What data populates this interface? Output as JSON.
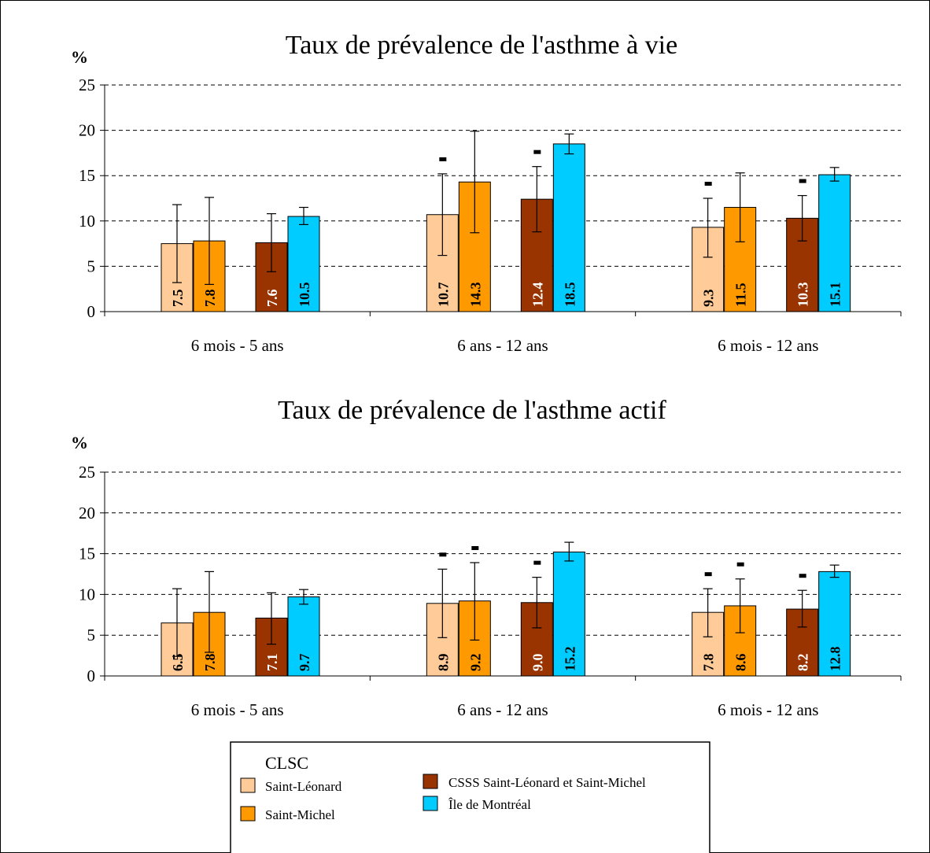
{
  "colors": {
    "saint_leonard": "#FFCC99",
    "saint_michel": "#FF9900",
    "csss": "#993300",
    "montreal": "#00CCFF",
    "grid": "#000000",
    "background": "#FFFFFF"
  },
  "legend": {
    "title": "CLSC",
    "items": [
      {
        "key": "saint_leonard",
        "label": "Saint-Léonard"
      },
      {
        "key": "saint_michel",
        "label": "Saint-Michel"
      },
      {
        "key": "csss",
        "label": "CSSS Saint-Léonard et Saint-Michel"
      },
      {
        "key": "montreal",
        "label": "Île de Montréal"
      }
    ]
  },
  "chart_data": [
    {
      "type": "bar",
      "title": "Taux de prévalence de l'asthme à vie",
      "ylabel": "%",
      "xlabel": "",
      "ylim": [
        0,
        25
      ],
      "yticks": [
        0,
        5,
        10,
        15,
        20,
        25
      ],
      "grid": true,
      "categories": [
        "6 mois - 5 ans",
        "6 ans - 12 ans",
        "6 mois - 12 ans"
      ],
      "series": [
        {
          "key": "saint_leonard",
          "name": "Saint-Léonard",
          "values": [
            7.5,
            10.7,
            9.3
          ],
          "value_labels": [
            "7.5",
            "10.7",
            "9.3"
          ],
          "error_low": [
            3.2,
            6.2,
            6.0
          ],
          "error_high": [
            11.8,
            15.2,
            12.5
          ],
          "marked": [
            false,
            true,
            true
          ]
        },
        {
          "key": "saint_michel",
          "name": "Saint-Michel",
          "values": [
            7.8,
            14.3,
            11.5
          ],
          "value_labels": [
            "7.8",
            "14.3",
            "11.5"
          ],
          "error_low": [
            3.0,
            8.7,
            7.7
          ],
          "error_high": [
            12.6,
            19.9,
            15.3
          ],
          "marked": [
            false,
            false,
            false
          ]
        },
        {
          "key": "csss",
          "name": "CSSS Saint-Léonard et Saint-Michel",
          "values": [
            7.6,
            12.4,
            10.3
          ],
          "value_labels": [
            "7.6",
            "12.4",
            "10.3"
          ],
          "error_low": [
            4.4,
            8.8,
            7.8
          ],
          "error_high": [
            10.8,
            16.0,
            12.8
          ],
          "marked": [
            false,
            true,
            true
          ]
        },
        {
          "key": "montreal",
          "name": "Île de Montréal",
          "values": [
            10.5,
            18.5,
            15.1
          ],
          "value_labels": [
            "10.5",
            "18.5",
            "15.1"
          ],
          "error_low": [
            9.6,
            17.4,
            14.4
          ],
          "error_high": [
            11.5,
            19.6,
            15.9
          ],
          "marked": [
            false,
            false,
            false
          ]
        }
      ]
    },
    {
      "type": "bar",
      "title": "Taux de prévalence de l'asthme actif",
      "ylabel": "%",
      "xlabel": "",
      "ylim": [
        0,
        25
      ],
      "yticks": [
        0,
        5,
        10,
        15,
        20,
        25
      ],
      "grid": true,
      "categories": [
        "6 mois - 5 ans",
        "6 ans - 12 ans",
        "6 mois - 12 ans"
      ],
      "series": [
        {
          "key": "saint_leonard",
          "name": "Saint-Léonard",
          "values": [
            6.5,
            8.9,
            7.8
          ],
          "value_labels": [
            "6.5",
            "8.9",
            "7.8"
          ],
          "error_low": [
            2.4,
            4.7,
            4.8
          ],
          "error_high": [
            10.7,
            13.1,
            10.7
          ],
          "marked": [
            false,
            true,
            true
          ]
        },
        {
          "key": "saint_michel",
          "name": "Saint-Michel",
          "values": [
            7.8,
            9.2,
            8.6
          ],
          "value_labels": [
            "7.8",
            "9.2",
            "8.6"
          ],
          "error_low": [
            2.9,
            4.4,
            5.3
          ],
          "error_high": [
            12.8,
            13.9,
            11.9
          ],
          "marked": [
            false,
            true,
            true
          ]
        },
        {
          "key": "csss",
          "name": "CSSS Saint-Léonard et Saint-Michel",
          "values": [
            7.1,
            9.0,
            8.2
          ],
          "value_labels": [
            "7.1",
            "9.0",
            "8.2"
          ],
          "error_low": [
            3.9,
            5.9,
            6.0
          ],
          "error_high": [
            10.2,
            12.1,
            10.5
          ],
          "marked": [
            false,
            true,
            true
          ]
        },
        {
          "key": "montreal",
          "name": "Île de Montréal",
          "values": [
            9.7,
            15.2,
            12.8
          ],
          "value_labels": [
            "9.7",
            "15.2",
            "12.8"
          ],
          "error_low": [
            8.8,
            14.1,
            12.1
          ],
          "error_high": [
            10.6,
            16.4,
            13.6
          ],
          "marked": [
            false,
            false,
            false
          ]
        }
      ]
    }
  ]
}
